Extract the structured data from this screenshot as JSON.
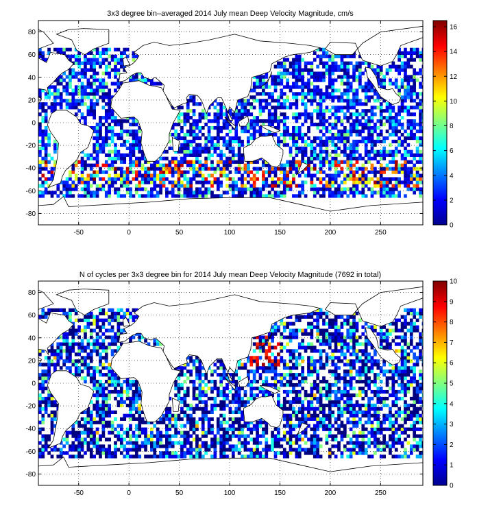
{
  "panels": [
    {
      "title": "3x3 degree bin–averaged 2014 July mean Deep Velocity Magnitude, cm/s",
      "xticks": [
        -50,
        0,
        50,
        100,
        150,
        200,
        250
      ],
      "yticks": [
        80,
        60,
        40,
        20,
        0,
        -20,
        -40,
        -60,
        -80
      ],
      "xlim": [
        -90,
        292
      ],
      "ylim": [
        -90,
        90
      ],
      "colorbar": {
        "min": 0,
        "max": 16.5,
        "ticks": [
          0,
          2,
          4,
          6,
          8,
          10,
          12,
          14,
          16
        ],
        "colormap": "jet"
      },
      "bin_size_deg": 3
    },
    {
      "title": "N of cycles per 3x3 degree bin for 2014 July mean Deep Velocity Magnitude (7692 in total)",
      "xticks": [
        -50,
        0,
        50,
        100,
        150,
        200,
        250
      ],
      "yticks": [
        80,
        60,
        40,
        20,
        0,
        -20,
        -40,
        -60,
        -80
      ],
      "xlim": [
        -90,
        292
      ],
      "ylim": [
        -90,
        90
      ],
      "colorbar": {
        "min": 0,
        "max": 10,
        "ticks": [
          0,
          1,
          2,
          3,
          4,
          5,
          6,
          7,
          8,
          9,
          10
        ],
        "colormap": "jet"
      },
      "bin_size_deg": 3
    }
  ],
  "colors": {
    "axis": "#000000",
    "grid": "#000000",
    "background": "#ffffff"
  }
}
